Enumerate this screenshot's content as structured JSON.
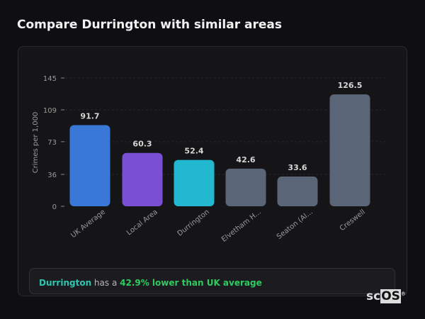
{
  "title": "Compare Durrington with similar areas",
  "chart_data": {
    "type": "bar",
    "categories": [
      "UK Average",
      "Local Area",
      "Durrington",
      "Elvetham H...",
      "Seaton (Al...",
      "Creswell"
    ],
    "values": [
      91.7,
      60.3,
      52.4,
      42.6,
      33.6,
      126.5
    ],
    "value_labels": [
      "91.7",
      "60.3",
      "52.4",
      "42.6",
      "33.6",
      "126.5"
    ],
    "colors": [
      "#3a78d8",
      "#7b4fd4",
      "#22b8d0",
      "#5a6577",
      "#5a6577",
      "#5a6577"
    ],
    "ylabel": "Crimes per 1,000",
    "xlabel": "",
    "ylim": [
      0,
      145
    ],
    "yticks": [
      0,
      36,
      73,
      109,
      145
    ],
    "grid": true
  },
  "summary": {
    "area": "Durrington",
    "middle": " has a ",
    "result": "42.9% lower than UK average"
  },
  "logo": {
    "text_a": "sc",
    "text_b": "OS",
    "mark": "®"
  }
}
